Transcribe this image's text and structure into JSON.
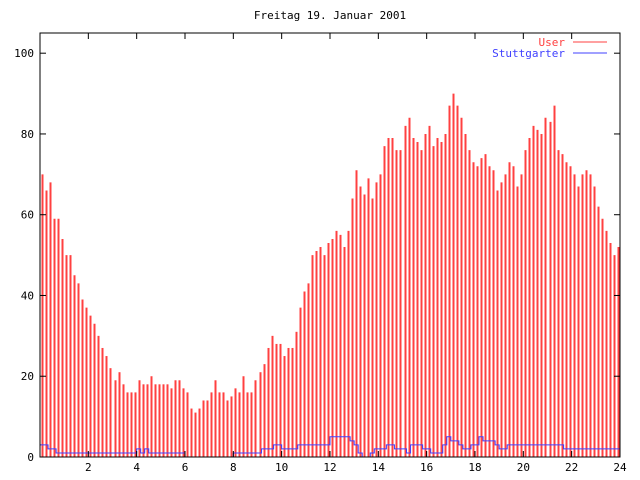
{
  "chart_data": {
    "type": "bar",
    "subtype": "impulses",
    "title": "Freitag 19. Januar 2001",
    "xlabel": "",
    "ylabel": "",
    "xlim": [
      0,
      24
    ],
    "ylim": [
      0,
      105
    ],
    "xticks": [
      "2",
      "4",
      "6",
      "8",
      "10",
      "12",
      "14",
      "16",
      "18",
      "20",
      "22",
      "24"
    ],
    "xtick_values": [
      2,
      4,
      6,
      8,
      10,
      12,
      14,
      16,
      18,
      20,
      22,
      24
    ],
    "yticks": [
      "0",
      "20",
      "40",
      "60",
      "80",
      "100"
    ],
    "ytick_values": [
      0,
      20,
      40,
      60,
      80,
      100
    ],
    "x_step_hours": 0.1666667,
    "legend_position": "top-right",
    "grid": false,
    "series": [
      {
        "name": "User",
        "style": "impulses",
        "color": "#ff4040",
        "values": [
          70,
          66,
          68,
          59,
          59,
          54,
          50,
          50,
          45,
          43,
          39,
          37,
          35,
          33,
          30,
          27,
          25,
          22,
          19,
          21,
          18,
          16,
          16,
          16,
          19,
          18,
          18,
          20,
          18,
          18,
          18,
          18,
          17,
          19,
          19,
          17,
          16,
          12,
          11,
          12,
          14,
          14,
          16,
          19,
          16,
          16,
          14,
          15,
          17,
          16,
          20,
          16,
          16,
          19,
          21,
          23,
          27,
          30,
          28,
          28,
          25,
          27,
          27,
          31,
          37,
          41,
          43,
          50,
          51,
          52,
          50,
          53,
          54,
          56,
          55,
          52,
          56,
          64,
          71,
          67,
          65,
          69,
          64,
          68,
          70,
          77,
          79,
          79,
          76,
          76,
          82,
          84,
          79,
          78,
          76,
          80,
          82,
          77,
          79,
          78,
          80,
          87,
          90,
          87,
          84,
          80,
          76,
          73,
          72,
          74,
          75,
          72,
          71,
          66,
          68,
          70,
          73,
          72,
          67,
          70,
          76,
          79,
          82,
          81,
          80,
          84,
          83,
          87,
          76,
          75,
          73,
          72,
          70,
          67,
          70,
          71,
          70,
          67,
          62,
          59,
          56,
          53,
          50,
          52
        ]
      },
      {
        "name": "Stuttgarter",
        "style": "steps",
        "color": "#4040ff",
        "values": [
          3,
          3,
          2,
          2,
          1,
          1,
          1,
          1,
          1,
          1,
          1,
          1,
          1,
          1,
          1,
          1,
          1,
          1,
          1,
          1,
          1,
          1,
          1,
          1,
          2,
          1,
          2,
          1,
          1,
          1,
          1,
          1,
          1,
          1,
          1,
          1,
          0,
          0,
          0,
          0,
          0,
          0,
          0,
          0,
          0,
          0,
          0,
          0,
          1,
          1,
          1,
          1,
          1,
          1,
          1,
          2,
          2,
          2,
          3,
          3,
          2,
          2,
          2,
          2,
          3,
          3,
          3,
          3,
          3,
          3,
          3,
          3,
          5,
          5,
          5,
          5,
          5,
          4,
          3,
          1,
          0,
          0,
          1,
          2,
          2,
          2,
          3,
          3,
          2,
          2,
          2,
          1,
          3,
          3,
          3,
          2,
          2,
          1,
          1,
          1,
          3,
          5,
          4,
          4,
          3,
          2,
          2,
          3,
          3,
          5,
          4,
          4,
          4,
          3,
          2,
          2,
          3,
          3,
          3,
          3,
          3,
          3,
          3,
          3,
          3,
          3,
          3,
          3,
          3,
          3,
          2,
          2,
          2,
          2,
          2,
          2,
          2,
          2,
          2,
          2,
          2,
          2,
          2,
          2
        ]
      }
    ]
  }
}
